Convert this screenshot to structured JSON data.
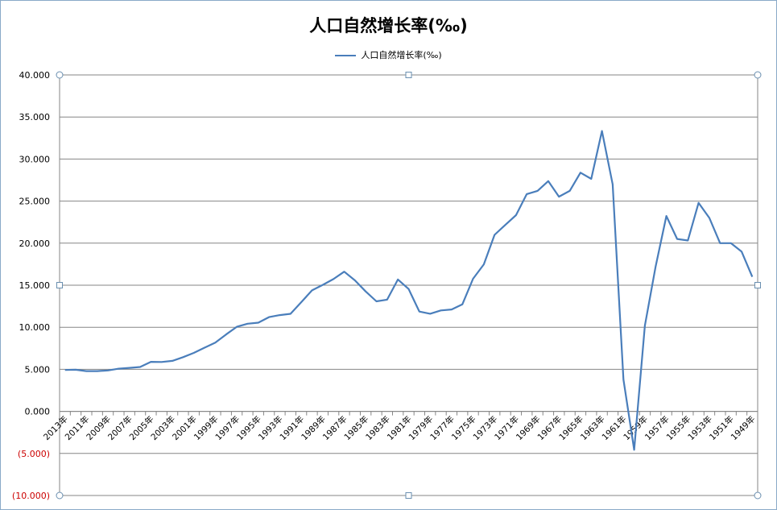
{
  "chart_data": {
    "type": "line",
    "title": "人口自然增长率(‰)",
    "legend_position": "top",
    "grid": true,
    "ylim": [
      -10,
      40
    ],
    "ytick_values": [
      40,
      35,
      30,
      25,
      20,
      15,
      10,
      5,
      0,
      -5,
      -10
    ],
    "ytick_labels": [
      "40.000",
      "35.000",
      "30.000",
      "25.000",
      "20.000",
      "15.000",
      "10.000",
      "5.000",
      "0.000",
      "(5.000)",
      "(10.000)"
    ],
    "categories": [
      "2013年",
      "2012年",
      "2011年",
      "2010年",
      "2009年",
      "2008年",
      "2007年",
      "2006年",
      "2005年",
      "2004年",
      "2003年",
      "2002年",
      "2001年",
      "2000年",
      "1999年",
      "1998年",
      "1997年",
      "1996年",
      "1995年",
      "1994年",
      "1993年",
      "1992年",
      "1991年",
      "1990年",
      "1989年",
      "1988年",
      "1987年",
      "1986年",
      "1985年",
      "1984年",
      "1983年",
      "1982年",
      "1981年",
      "1980年",
      "1979年",
      "1978年",
      "1977年",
      "1976年",
      "1975年",
      "1974年",
      "1973年",
      "1972年",
      "1971年",
      "1970年",
      "1969年",
      "1968年",
      "1967年",
      "1966年",
      "1965年",
      "1964年",
      "1963年",
      "1962年",
      "1961年",
      "1960年",
      "1959年",
      "1958年",
      "1957年",
      "1956年",
      "1955年",
      "1954年",
      "1953年",
      "1952年",
      "1951年",
      "1950年",
      "1949年"
    ],
    "xtick_labels": [
      "2013年",
      "2011年",
      "2009年",
      "2007年",
      "2005年",
      "2003年",
      "2001年",
      "1999年",
      "1997年",
      "1995年",
      "1993年",
      "1991年",
      "1989年",
      "1987年",
      "1985年",
      "1983年",
      "1981年",
      "1979年",
      "1977年",
      "1975年",
      "1973年",
      "1971年",
      "1969年",
      "1967年",
      "1965年",
      "1963年",
      "1961年",
      "1959年",
      "1957年",
      "1955年",
      "1953年",
      "1951年",
      "1949年"
    ],
    "series": [
      {
        "name": "人口自然增长率(‰)",
        "color": "#4a7ebb",
        "values": [
          4.92,
          4.95,
          4.79,
          4.79,
          4.87,
          5.08,
          5.17,
          5.28,
          5.89,
          5.87,
          6.01,
          6.45,
          6.95,
          7.58,
          8.18,
          9.14,
          10.06,
          10.42,
          10.55,
          11.21,
          11.45,
          11.6,
          12.98,
          14.39,
          15.04,
          15.73,
          16.61,
          15.57,
          14.26,
          13.08,
          13.29,
          15.68,
          14.55,
          11.87,
          11.61,
          12.0,
          12.12,
          12.72,
          15.77,
          17.48,
          20.99,
          22.16,
          23.33,
          25.83,
          26.22,
          27.38,
          25.53,
          26.22,
          28.38,
          27.64,
          33.33,
          26.99,
          3.78,
          -4.57,
          10.19,
          17.24,
          23.23,
          20.5,
          20.32,
          24.79,
          23.0,
          20.0,
          20.0,
          19.0,
          16.0
        ]
      }
    ]
  }
}
